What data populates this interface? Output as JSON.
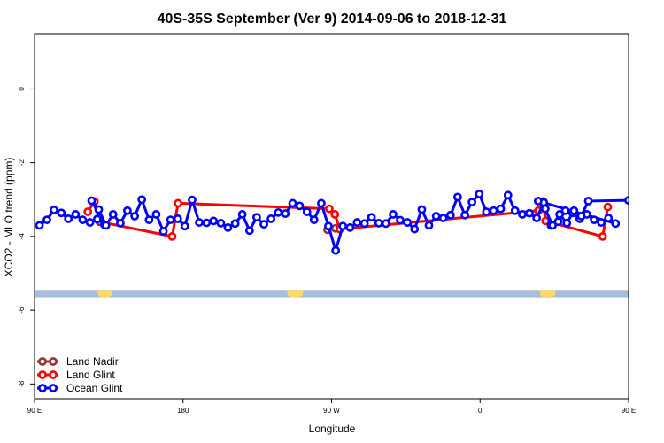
{
  "chart_data": {
    "type": "line",
    "title": "40S-35S September (Ver 9)   2014-09-06 to 2018-12-31",
    "xlabel": "Longitude",
    "ylabel": "XCO2 - MLO trend (ppm)",
    "xlim": [
      90,
      450
    ],
    "ylim": [
      -8.4,
      1.5
    ],
    "x_ticks": [
      {
        "value": 90,
        "label": "90 E"
      },
      {
        "value": 180,
        "label": "180"
      },
      {
        "value": 270,
        "label": "90 W"
      },
      {
        "value": 360,
        "label": "0"
      },
      {
        "value": 450,
        "label": "90 E"
      },
      {
        "value": 540,
        "label": "180"
      }
    ],
    "y_ticks": [
      {
        "value": 0,
        "label": "0"
      },
      {
        "value": -2,
        "label": "-2"
      },
      {
        "value": -4,
        "label": "-4"
      },
      {
        "value": -6,
        "label": "-6"
      },
      {
        "value": -8,
        "label": "-8"
      }
    ],
    "grid": false,
    "legend_position": "bottom-left",
    "land_band": {
      "y_top": -5.45,
      "y_bottom": -5.65,
      "ocean_color": "#a6bedc",
      "land_color": "#ffd966"
    },
    "land_segments": [
      [
        128,
        137
      ],
      [
        243,
        253
      ],
      [
        396,
        406
      ]
    ],
    "series": [
      {
        "name": "Land Nadir",
        "color": "#993333",
        "points": [
          [
            267.6,
            -3.82
          ],
          [
            272.3,
            -3.78
          ]
        ]
      },
      {
        "name": "Land Glint",
        "color": "#ff0000",
        "points": [
          [
            122.3,
            -3.33
          ],
          [
            126.3,
            -3.05
          ],
          [
            129.4,
            -3.6
          ],
          [
            173.4,
            -4.0
          ],
          [
            177,
            -3.1
          ],
          [
            268.6,
            -3.25
          ],
          [
            272,
            -3.4
          ],
          [
            275,
            -3.8
          ],
          [
            395.4,
            -3.3
          ],
          [
            398.3,
            -3.05
          ],
          [
            399.7,
            -3.58
          ],
          [
            434.3,
            -4.0
          ],
          [
            437.4,
            -3.2
          ]
        ]
      },
      {
        "name": "Ocean Glint",
        "color": "#0000ff",
        "points": [
          [
            93,
            -3.7
          ],
          [
            97.5,
            -3.55
          ],
          [
            101.8,
            -3.28
          ],
          [
            106.2,
            -3.36
          ],
          [
            110.5,
            -3.52
          ],
          [
            114.9,
            -3.4
          ],
          [
            119.2,
            -3.55
          ],
          [
            123.6,
            -3.62
          ],
          [
            128,
            -3.53
          ],
          [
            132.3,
            -3.68
          ],
          [
            124.6,
            -3.03
          ],
          [
            128.9,
            -3.27
          ],
          [
            133.3,
            -3.7
          ],
          [
            137.6,
            -3.4
          ],
          [
            142,
            -3.64
          ],
          [
            146.3,
            -3.3
          ],
          [
            150.7,
            -3.45
          ],
          [
            155,
            -3.0
          ],
          [
            159.4,
            -3.55
          ],
          [
            163.7,
            -3.4
          ],
          [
            168.1,
            -3.86
          ],
          [
            172.4,
            -3.55
          ],
          [
            176.8,
            -3.52
          ],
          [
            181.1,
            -3.72
          ],
          [
            185.5,
            -3.01
          ],
          [
            189.8,
            -3.62
          ],
          [
            194.2,
            -3.63
          ],
          [
            198.5,
            -3.58
          ],
          [
            202.9,
            -3.64
          ],
          [
            207.2,
            -3.76
          ],
          [
            211.6,
            -3.65
          ],
          [
            215.9,
            -3.4
          ],
          [
            220.3,
            -3.84
          ],
          [
            224.6,
            -3.48
          ],
          [
            229,
            -3.67
          ],
          [
            233.3,
            -3.52
          ],
          [
            237.7,
            -3.35
          ],
          [
            242,
            -3.38
          ],
          [
            246.4,
            -3.1
          ],
          [
            250.7,
            -3.17
          ],
          [
            255.1,
            -3.33
          ],
          [
            259.4,
            -3.55
          ],
          [
            263.8,
            -3.1
          ],
          [
            268.1,
            -3.72
          ],
          [
            272.5,
            -4.38
          ],
          [
            276.8,
            -3.72
          ],
          [
            281.2,
            -3.76
          ],
          [
            285.5,
            -3.62
          ],
          [
            289.9,
            -3.65
          ],
          [
            294.2,
            -3.48
          ],
          [
            298.6,
            -3.64
          ],
          [
            302.9,
            -3.65
          ],
          [
            307.3,
            -3.4
          ],
          [
            311.6,
            -3.56
          ],
          [
            316,
            -3.62
          ],
          [
            320.3,
            -3.8
          ],
          [
            324.7,
            -3.27
          ],
          [
            329,
            -3.7
          ],
          [
            333.4,
            -3.45
          ],
          [
            337.7,
            -3.5
          ],
          [
            342.1,
            -3.42
          ],
          [
            346.4,
            -2.93
          ],
          [
            350.8,
            -3.42
          ],
          [
            355.1,
            -3.07
          ],
          [
            359.5,
            -2.85
          ],
          [
            363.8,
            -3.33
          ],
          [
            368.2,
            -3.3
          ],
          [
            372.5,
            -3.25
          ],
          [
            376.9,
            -2.88
          ],
          [
            381.2,
            -3.3
          ],
          [
            385.6,
            -3.4
          ],
          [
            389.9,
            -3.37
          ],
          [
            394.3,
            -3.5
          ],
          [
            398.6,
            -3.08
          ],
          [
            403,
            -3.7
          ],
          [
            407.3,
            -3.6
          ],
          [
            411.7,
            -3.3
          ],
          [
            416,
            -3.36
          ],
          [
            420.4,
            -3.52
          ],
          [
            424.7,
            -3.4
          ],
          [
            429.1,
            -3.55
          ],
          [
            433.4,
            -3.62
          ],
          [
            437.8,
            -3.5
          ],
          [
            442.1,
            -3.65
          ],
          [
            395.2,
            -3.04
          ],
          [
            399.5,
            -3.25
          ],
          [
            403.9,
            -3.7
          ],
          [
            408.2,
            -3.4
          ],
          [
            412.6,
            -3.64
          ],
          [
            416.9,
            -3.3
          ],
          [
            421.3,
            -3.45
          ],
          [
            425.6,
            -3.04
          ],
          [
            450,
            -3.02
          ]
        ]
      }
    ]
  }
}
